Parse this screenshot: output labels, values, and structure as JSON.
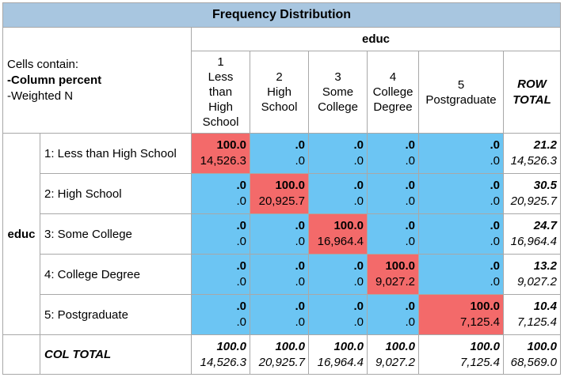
{
  "title": "Frequency Distribution",
  "column_variable": "educ",
  "row_variable": "educ",
  "legend": {
    "line1": "Cells contain:",
    "line2": "-Column percent",
    "line3": "-Weighted N"
  },
  "columns": [
    {
      "code": "1",
      "label_lines": [
        "Less",
        "than",
        "High",
        "School"
      ]
    },
    {
      "code": "2",
      "label_lines": [
        "High",
        "School"
      ]
    },
    {
      "code": "3",
      "label_lines": [
        "Some",
        "College"
      ]
    },
    {
      "code": "4",
      "label_lines": [
        "College",
        "Degree"
      ]
    },
    {
      "code": "5",
      "label_lines": [
        "Postgraduate"
      ]
    }
  ],
  "row_total_header": [
    "ROW",
    "TOTAL"
  ],
  "rows": [
    {
      "label": "1: Less than High School",
      "cells": [
        {
          "pct": "100.0",
          "n": "14,526.3",
          "color": "red"
        },
        {
          "pct": ".0",
          "n": ".0",
          "color": "blue"
        },
        {
          "pct": ".0",
          "n": ".0",
          "color": "blue"
        },
        {
          "pct": ".0",
          "n": ".0",
          "color": "blue"
        },
        {
          "pct": ".0",
          "n": ".0",
          "color": "blue"
        }
      ],
      "total": {
        "pct": "21.2",
        "n": "14,526.3"
      }
    },
    {
      "label": "2: High School",
      "cells": [
        {
          "pct": ".0",
          "n": ".0",
          "color": "blue"
        },
        {
          "pct": "100.0",
          "n": "20,925.7",
          "color": "red"
        },
        {
          "pct": ".0",
          "n": ".0",
          "color": "blue"
        },
        {
          "pct": ".0",
          "n": ".0",
          "color": "blue"
        },
        {
          "pct": ".0",
          "n": ".0",
          "color": "blue"
        }
      ],
      "total": {
        "pct": "30.5",
        "n": "20,925.7"
      }
    },
    {
      "label": "3: Some College",
      "cells": [
        {
          "pct": ".0",
          "n": ".0",
          "color": "blue"
        },
        {
          "pct": ".0",
          "n": ".0",
          "color": "blue"
        },
        {
          "pct": "100.0",
          "n": "16,964.4",
          "color": "red"
        },
        {
          "pct": ".0",
          "n": ".0",
          "color": "blue"
        },
        {
          "pct": ".0",
          "n": ".0",
          "color": "blue"
        }
      ],
      "total": {
        "pct": "24.7",
        "n": "16,964.4"
      }
    },
    {
      "label": "4: College Degree",
      "cells": [
        {
          "pct": ".0",
          "n": ".0",
          "color": "blue"
        },
        {
          "pct": ".0",
          "n": ".0",
          "color": "blue"
        },
        {
          "pct": ".0",
          "n": ".0",
          "color": "blue"
        },
        {
          "pct": "100.0",
          "n": "9,027.2",
          "color": "red"
        },
        {
          "pct": ".0",
          "n": ".0",
          "color": "blue"
        }
      ],
      "total": {
        "pct": "13.2",
        "n": "9,027.2"
      }
    },
    {
      "label": "5: Postgraduate",
      "cells": [
        {
          "pct": ".0",
          "n": ".0",
          "color": "blue"
        },
        {
          "pct": ".0",
          "n": ".0",
          "color": "blue"
        },
        {
          "pct": ".0",
          "n": ".0",
          "color": "blue"
        },
        {
          "pct": ".0",
          "n": ".0",
          "color": "blue"
        },
        {
          "pct": "100.0",
          "n": "7,125.4",
          "color": "red"
        }
      ],
      "total": {
        "pct": "10.4",
        "n": "7,125.4"
      }
    }
  ],
  "col_total": {
    "label": "COL TOTAL",
    "cells": [
      {
        "pct": "100.0",
        "n": "14,526.3"
      },
      {
        "pct": "100.0",
        "n": "20,925.7"
      },
      {
        "pct": "100.0",
        "n": "16,964.4"
      },
      {
        "pct": "100.0",
        "n": "9,027.2"
      },
      {
        "pct": "100.0",
        "n": "7,125.4"
      }
    ],
    "grand": {
      "pct": "100.0",
      "n": "68,569.0"
    }
  },
  "colors": {
    "header_bg": "#a8c6e0",
    "blue_cell": "#6cc5f3",
    "red_cell": "#f36a6a"
  }
}
